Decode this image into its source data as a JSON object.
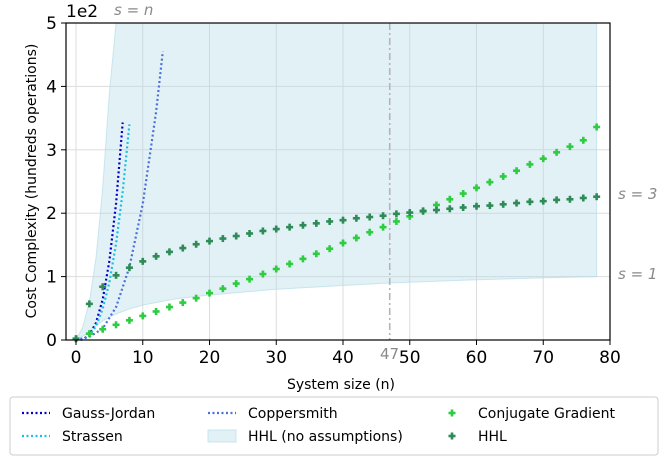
{
  "chart_data": {
    "type": "line",
    "xlabel": "System size (n)",
    "ylabel": "Cost Complexity (hundreds operations)",
    "y_multiplier_label": "1e2",
    "xlim": [
      -1.5,
      80
    ],
    "ylim": [
      0,
      5
    ],
    "x_ticks": [
      0,
      10,
      20,
      30,
      40,
      50,
      60,
      70,
      80
    ],
    "y_ticks": [
      0,
      1,
      2,
      3,
      4,
      5
    ],
    "grid": true,
    "legend_position": "bottom",
    "annotations": {
      "s_equals_n": "s = n",
      "s_equals_3": "s = 3",
      "s_equals_1": "s = 1",
      "crossover_x": 47
    },
    "series": [
      {
        "name": "Gauss-Jordan",
        "style": "dotted-line",
        "color": "#0000c8",
        "x": [
          0,
          1,
          2,
          3,
          4,
          5,
          6,
          7
        ],
        "y": [
          0.0,
          0.01,
          0.08,
          0.27,
          0.64,
          1.25,
          2.16,
          3.43
        ]
      },
      {
        "name": "Strassen",
        "style": "dotted-line",
        "color": "#17c0e0",
        "x": [
          0,
          1,
          2,
          3,
          4,
          5,
          6,
          7,
          8
        ],
        "y": [
          0.0,
          0.01,
          0.07,
          0.22,
          0.49,
          0.91,
          1.52,
          2.34,
          3.4
        ]
      },
      {
        "name": "Coppersmith",
        "style": "dotted-line",
        "color": "#4a6fd8",
        "x": [
          0,
          2,
          4,
          6,
          8,
          10,
          12,
          13
        ],
        "y": [
          0.0,
          0.05,
          0.18,
          0.52,
          1.15,
          2.15,
          3.6,
          4.55
        ]
      },
      {
        "name": "HHL (no assumptions)",
        "style": "band",
        "color": "#add8e6",
        "x": [
          0,
          1,
          2,
          3,
          4,
          5,
          6,
          7,
          8,
          10,
          15,
          20,
          30,
          40,
          47,
          50,
          60,
          70,
          78
        ],
        "y_low": [
          0.0,
          0.06,
          0.13,
          0.22,
          0.3,
          0.36,
          0.41,
          0.45,
          0.49,
          0.55,
          0.65,
          0.71,
          0.8,
          0.86,
          0.9,
          0.91,
          0.95,
          0.98,
          1.0
        ],
        "y_high": [
          0.0,
          0.2,
          0.6,
          1.3,
          2.4,
          3.9,
          5,
          5,
          5,
          5,
          5,
          5,
          5,
          5,
          5,
          5,
          5,
          5,
          5
        ]
      },
      {
        "name": "Conjugate Gradient",
        "style": "plus-markers",
        "color": "#2ecc40",
        "x": [
          0,
          2,
          4,
          6,
          8,
          10,
          12,
          14,
          16,
          18,
          20,
          22,
          24,
          26,
          28,
          30,
          32,
          34,
          36,
          38,
          40,
          42,
          44,
          46,
          48,
          50,
          52,
          54,
          56,
          58,
          60,
          62,
          64,
          66,
          68,
          70,
          72,
          74,
          76,
          78
        ],
        "y": [
          0.02,
          0.1,
          0.17,
          0.24,
          0.31,
          0.38,
          0.45,
          0.52,
          0.59,
          0.66,
          0.74,
          0.81,
          0.89,
          0.96,
          1.04,
          1.12,
          1.2,
          1.28,
          1.36,
          1.44,
          1.53,
          1.61,
          1.7,
          1.78,
          1.87,
          1.95,
          2.04,
          2.13,
          2.22,
          2.31,
          2.4,
          2.49,
          2.58,
          2.67,
          2.77,
          2.86,
          2.96,
          3.05,
          3.15,
          3.36
        ]
      },
      {
        "name": "HHL",
        "style": "plus-markers",
        "color": "#2e8b57",
        "x": [
          0,
          2,
          4,
          6,
          8,
          10,
          12,
          14,
          16,
          18,
          20,
          22,
          24,
          26,
          28,
          30,
          32,
          34,
          36,
          38,
          40,
          42,
          44,
          46,
          48,
          50,
          52,
          54,
          56,
          58,
          60,
          62,
          64,
          66,
          68,
          70,
          72,
          74,
          76,
          78
        ],
        "y": [
          0.02,
          0.57,
          0.84,
          1.02,
          1.14,
          1.24,
          1.32,
          1.39,
          1.45,
          1.51,
          1.56,
          1.6,
          1.64,
          1.68,
          1.72,
          1.75,
          1.78,
          1.81,
          1.84,
          1.87,
          1.89,
          1.92,
          1.94,
          1.96,
          1.99,
          2.01,
          2.03,
          2.05,
          2.07,
          2.09,
          2.11,
          2.12,
          2.14,
          2.16,
          2.18,
          2.19,
          2.21,
          2.22,
          2.24,
          2.26
        ]
      }
    ]
  }
}
